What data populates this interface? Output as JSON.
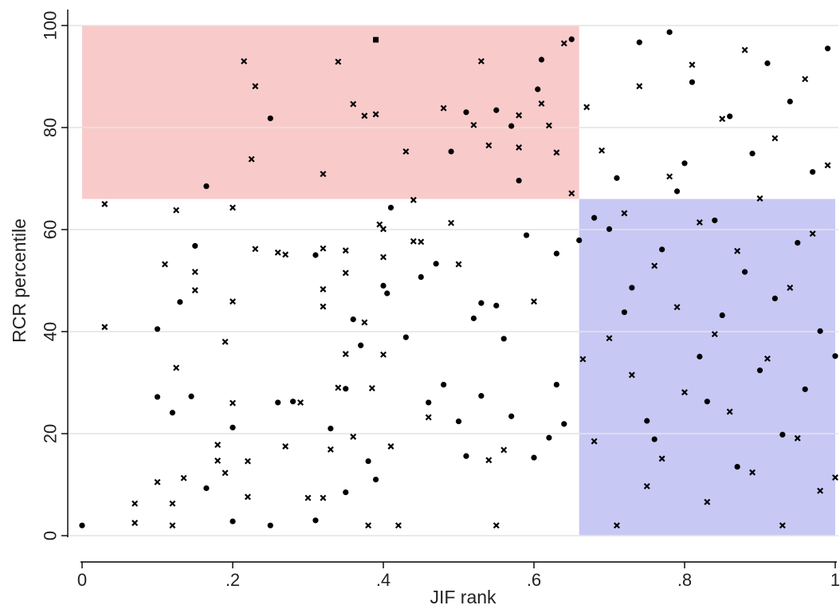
{
  "chart_data": {
    "type": "scatter",
    "xlabel": "JIF rank",
    "ylabel": "RCR percentile",
    "xlim": [
      0,
      1
    ],
    "ylim": [
      0,
      100
    ],
    "x_ticks": [
      {
        "value": 0,
        "label": "0"
      },
      {
        "value": 0.2,
        "label": ".2"
      },
      {
        "value": 0.4,
        "label": ".4"
      },
      {
        "value": 0.6,
        "label": ".6"
      },
      {
        "value": 0.8,
        "label": ".8"
      },
      {
        "value": 1,
        "label": "1"
      }
    ],
    "y_ticks": [
      {
        "value": 0,
        "label": "0"
      },
      {
        "value": 20,
        "label": "20"
      },
      {
        "value": 40,
        "label": "40"
      },
      {
        "value": 60,
        "label": "60"
      },
      {
        "value": 80,
        "label": "80"
      },
      {
        "value": 100,
        "label": "100"
      }
    ],
    "grid": "horizontal",
    "legend": "none",
    "regions": [
      {
        "x": [
          0,
          0.66
        ],
        "y": [
          66,
          100
        ],
        "color": "#f9caca"
      },
      {
        "x": [
          0.66,
          1
        ],
        "y": [
          0,
          66
        ],
        "color": "#c8c8f5"
      }
    ],
    "marker_color": "#000000",
    "series": [
      {
        "marker": "square",
        "points": [
          [
            0.39,
            97.2
          ]
        ]
      },
      {
        "marker": "dot",
        "points": [
          [
            0.0,
            2
          ],
          [
            0.1,
            40.5
          ],
          [
            0.1,
            27.2
          ],
          [
            0.12,
            24.1
          ],
          [
            0.13,
            45.8
          ],
          [
            0.145,
            27.3
          ],
          [
            0.15,
            56.8
          ],
          [
            0.165,
            9.3
          ],
          [
            0.165,
            68.5
          ],
          [
            0.2,
            21.2
          ],
          [
            0.2,
            2.8
          ],
          [
            0.25,
            81.8
          ],
          [
            0.25,
            2
          ],
          [
            0.26,
            26.1
          ],
          [
            0.28,
            26.3
          ],
          [
            0.31,
            55
          ],
          [
            0.31,
            3
          ],
          [
            0.33,
            21
          ],
          [
            0.35,
            28.8
          ],
          [
            0.36,
            42.4
          ],
          [
            0.35,
            8.5
          ],
          [
            0.37,
            37.3
          ],
          [
            0.38,
            14.6
          ],
          [
            0.39,
            11
          ],
          [
            0.4,
            49
          ],
          [
            0.405,
            47.5
          ],
          [
            0.41,
            64.3
          ],
          [
            0.43,
            38.9
          ],
          [
            0.45,
            50.7
          ],
          [
            0.46,
            26.1
          ],
          [
            0.47,
            53.3
          ],
          [
            0.48,
            29.6
          ],
          [
            0.49,
            75.3
          ],
          [
            0.5,
            22.4
          ],
          [
            0.51,
            83
          ],
          [
            0.51,
            15.6
          ],
          [
            0.52,
            42.6
          ],
          [
            0.53,
            45.6
          ],
          [
            0.53,
            27.4
          ],
          [
            0.55,
            45.1
          ],
          [
            0.55,
            83.4
          ],
          [
            0.56,
            38.6
          ],
          [
            0.57,
            80.3
          ],
          [
            0.57,
            23.4
          ],
          [
            0.58,
            69.6
          ],
          [
            0.59,
            58.9
          ],
          [
            0.6,
            15.3
          ],
          [
            0.605,
            87.5
          ],
          [
            0.61,
            93.3
          ],
          [
            0.62,
            19.2
          ],
          [
            0.63,
            55.3
          ],
          [
            0.63,
            29.6
          ],
          [
            0.64,
            21.9
          ],
          [
            0.65,
            97.3
          ],
          [
            0.66,
            57.9
          ],
          [
            0.68,
            62.3
          ],
          [
            0.7,
            60.1
          ],
          [
            0.71,
            70.1
          ],
          [
            0.72,
            43.8
          ],
          [
            0.73,
            48.6
          ],
          [
            0.74,
            96.7
          ],
          [
            0.75,
            22.5
          ],
          [
            0.76,
            18.9
          ],
          [
            0.77,
            56.1
          ],
          [
            0.78,
            98.7
          ],
          [
            0.79,
            67.5
          ],
          [
            0.8,
            73
          ],
          [
            0.81,
            88.9
          ],
          [
            0.82,
            35.1
          ],
          [
            0.83,
            26.3
          ],
          [
            0.84,
            61.8
          ],
          [
            0.85,
            43.2
          ],
          [
            0.86,
            82.2
          ],
          [
            0.87,
            13.5
          ],
          [
            0.88,
            51.7
          ],
          [
            0.89,
            74.9
          ],
          [
            0.9,
            32.4
          ],
          [
            0.91,
            92.6
          ],
          [
            0.92,
            46.5
          ],
          [
            0.93,
            19.8
          ],
          [
            0.94,
            85.1
          ],
          [
            0.95,
            57.4
          ],
          [
            0.96,
            28.7
          ],
          [
            0.97,
            71.3
          ],
          [
            0.98,
            40.1
          ],
          [
            0.99,
            95.5
          ],
          [
            1.0,
            35.2
          ]
        ]
      },
      {
        "marker": "x",
        "points": [
          [
            0.03,
            65
          ],
          [
            0.03,
            40.9
          ],
          [
            0.07,
            6.3
          ],
          [
            0.07,
            2.5
          ],
          [
            0.1,
            10.5
          ],
          [
            0.11,
            53.2
          ],
          [
            0.12,
            6.3
          ],
          [
            0.12,
            2
          ],
          [
            0.125,
            63.8
          ],
          [
            0.125,
            32.9
          ],
          [
            0.135,
            11.3
          ],
          [
            0.15,
            51.7
          ],
          [
            0.15,
            48.1
          ],
          [
            0.18,
            17.8
          ],
          [
            0.18,
            14.7
          ],
          [
            0.19,
            38
          ],
          [
            0.19,
            12.3
          ],
          [
            0.2,
            64.3
          ],
          [
            0.2,
            45.9
          ],
          [
            0.2,
            26
          ],
          [
            0.215,
            93
          ],
          [
            0.22,
            14.6
          ],
          [
            0.22,
            7.6
          ],
          [
            0.225,
            73.8
          ],
          [
            0.23,
            56.2
          ],
          [
            0.23,
            88.1
          ],
          [
            0.26,
            55.5
          ],
          [
            0.27,
            17.5
          ],
          [
            0.27,
            55.1
          ],
          [
            0.29,
            26.1
          ],
          [
            0.3,
            7.4
          ],
          [
            0.32,
            70.9
          ],
          [
            0.32,
            56.3
          ],
          [
            0.32,
            48.3
          ],
          [
            0.32,
            44.9
          ],
          [
            0.32,
            7.4
          ],
          [
            0.33,
            16.9
          ],
          [
            0.34,
            29
          ],
          [
            0.34,
            92.9
          ],
          [
            0.35,
            55.9
          ],
          [
            0.35,
            51.5
          ],
          [
            0.35,
            35.6
          ],
          [
            0.36,
            84.6
          ],
          [
            0.36,
            19.4
          ],
          [
            0.375,
            82.3
          ],
          [
            0.375,
            41.8
          ],
          [
            0.38,
            2
          ],
          [
            0.385,
            28.9
          ],
          [
            0.39,
            82.6
          ],
          [
            0.395,
            61
          ],
          [
            0.4,
            60.1
          ],
          [
            0.4,
            54.6
          ],
          [
            0.4,
            35.5
          ],
          [
            0.41,
            17.5
          ],
          [
            0.42,
            2
          ],
          [
            0.43,
            75.3
          ],
          [
            0.44,
            57.7
          ],
          [
            0.44,
            65.8
          ],
          [
            0.45,
            57.6
          ],
          [
            0.46,
            23.2
          ],
          [
            0.48,
            83.8
          ],
          [
            0.49,
            61.3
          ],
          [
            0.5,
            53.2
          ],
          [
            0.52,
            80.5
          ],
          [
            0.53,
            93
          ],
          [
            0.54,
            76.5
          ],
          [
            0.54,
            14.8
          ],
          [
            0.55,
            2
          ],
          [
            0.56,
            16.8
          ],
          [
            0.58,
            82.4
          ],
          [
            0.58,
            76.1
          ],
          [
            0.6,
            45.9
          ],
          [
            0.61,
            84.7
          ],
          [
            0.62,
            80.4
          ],
          [
            0.63,
            75.1
          ],
          [
            0.64,
            96.5
          ],
          [
            0.65,
            67.1
          ],
          [
            0.665,
            34.6
          ],
          [
            0.67,
            84
          ],
          [
            0.68,
            18.5
          ],
          [
            0.69,
            75.5
          ],
          [
            0.7,
            38.7
          ],
          [
            0.71,
            2
          ],
          [
            0.72,
            63.2
          ],
          [
            0.73,
            31.5
          ],
          [
            0.74,
            88.1
          ],
          [
            0.75,
            9.7
          ],
          [
            0.76,
            52.9
          ],
          [
            0.77,
            15.1
          ],
          [
            0.78,
            70.4
          ],
          [
            0.79,
            44.8
          ],
          [
            0.8,
            28.1
          ],
          [
            0.81,
            92.3
          ],
          [
            0.82,
            61.4
          ],
          [
            0.83,
            6.6
          ],
          [
            0.84,
            39.5
          ],
          [
            0.85,
            81.7
          ],
          [
            0.86,
            24.3
          ],
          [
            0.87,
            55.8
          ],
          [
            0.88,
            95.2
          ],
          [
            0.89,
            12.4
          ],
          [
            0.9,
            66.1
          ],
          [
            0.91,
            34.7
          ],
          [
            0.92,
            77.9
          ],
          [
            0.93,
            2
          ],
          [
            0.94,
            48.6
          ],
          [
            0.95,
            19.1
          ],
          [
            0.96,
            89.5
          ],
          [
            0.97,
            59.2
          ],
          [
            0.98,
            8.8
          ],
          [
            0.99,
            72.6
          ],
          [
            1.0,
            11.4
          ]
        ]
      }
    ]
  }
}
